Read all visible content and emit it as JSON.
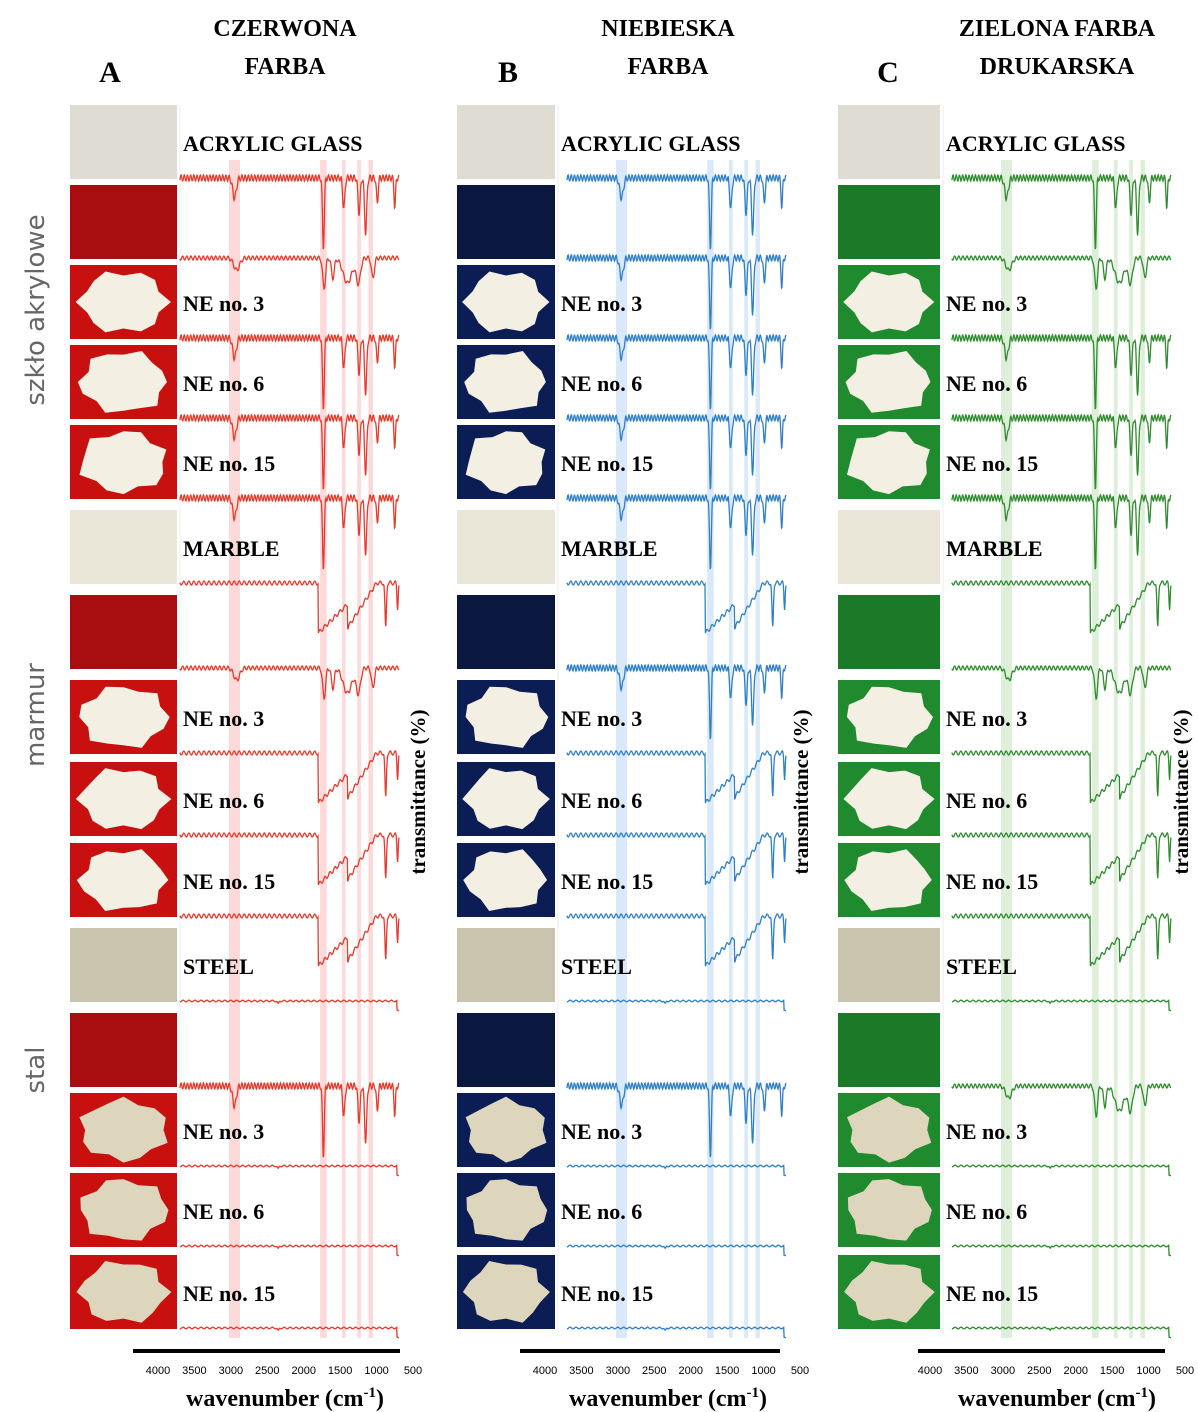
{
  "side_labels": [
    "szkło akrylowe",
    "marmur",
    "stal"
  ],
  "panels": [
    {
      "letter": "A",
      "title_lines": [
        "CZERWONA",
        "FARBA"
      ]
    },
    {
      "letter": "B",
      "title_lines": [
        "NIEBIESKA",
        "FARBA"
      ]
    },
    {
      "letter": "C",
      "title_lines": [
        "ZIELONA FARBA",
        "DRUKARSKA"
      ]
    }
  ],
  "substrates": [
    {
      "name": "ACRYLIC GLASS",
      "samples": [
        "NE no. 3",
        "NE no. 6",
        "NE no. 15"
      ]
    },
    {
      "name": "MARBLE",
      "samples": [
        "NE no. 3",
        "NE no. 6",
        "NE no. 15"
      ]
    },
    {
      "name": "STEEL",
      "samples": [
        "NE no. 3",
        "NE no. 6",
        "NE no. 15"
      ]
    }
  ],
  "xticks": [
    4000,
    3500,
    3000,
    2500,
    2000,
    1500,
    1000,
    500
  ],
  "xlabel": {
    "text": "wavenumber (cm",
    "sup": "-1",
    "end": ")"
  },
  "ylabel": "transmittance (%)"
}
